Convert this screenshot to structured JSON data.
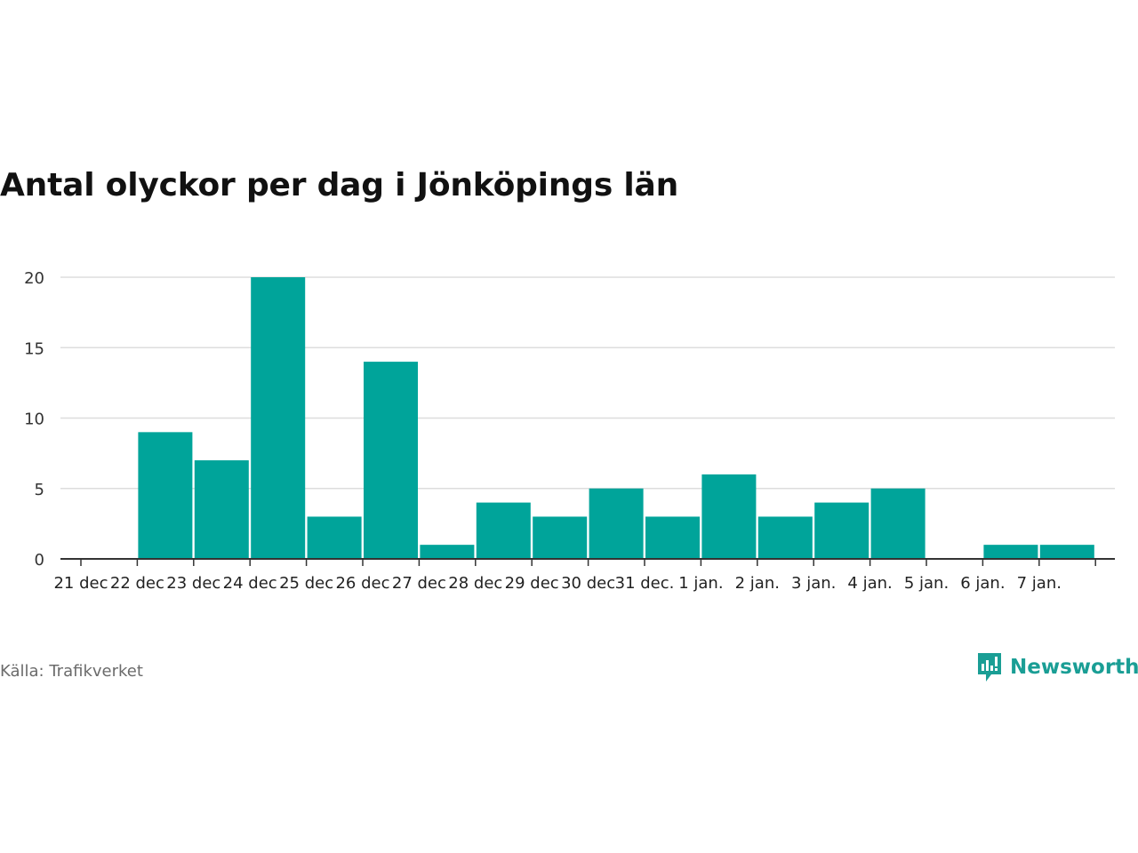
{
  "title": "Antal olyckor per dag i Jönköpings län",
  "source": "Källa: Trafikverket",
  "logo": {
    "text": "Newsworthy",
    "icon": "chart-speech-bubble-icon",
    "color": "#1a9e95"
  },
  "colors": {
    "bar": "#00a49a",
    "grid": "#dddddd",
    "axis": "#333333"
  },
  "chart_data": {
    "type": "bar",
    "categories": [
      "21 dec",
      "22 dec",
      "23 dec",
      "24 dec",
      "25 dec",
      "26 dec",
      "27 dec",
      "28 dec",
      "29 dec",
      "30 dec",
      "31 dec.",
      "1 jan.",
      "2 jan.",
      "3 jan.",
      "4 jan.",
      "5 jan.",
      "6 jan.",
      "7 jan."
    ],
    "values": [
      0,
      9,
      7,
      20,
      3,
      14,
      1,
      4,
      3,
      5,
      3,
      6,
      3,
      4,
      5,
      0,
      1,
      1
    ],
    "yticks": [
      "0",
      "5",
      "10",
      "15",
      "20"
    ],
    "ylim": [
      0,
      20
    ],
    "grid": true,
    "legend": "none"
  }
}
